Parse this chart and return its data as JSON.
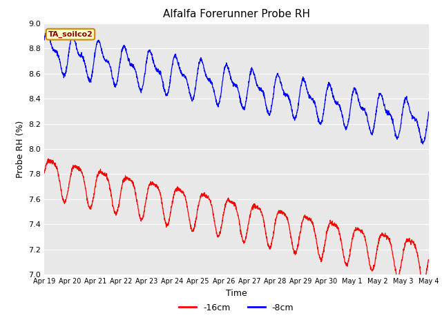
{
  "title": "Alfalfa Forerunner Probe RH",
  "ylabel": "Probe RH (%)",
  "xlabel": "Time",
  "ylim": [
    7.0,
    9.0
  ],
  "yticks": [
    7.0,
    7.2,
    7.4,
    7.6,
    7.8,
    8.0,
    8.2,
    8.4,
    8.6,
    8.8,
    9.0
  ],
  "x_tick_labels": [
    "Apr 19",
    "Apr 20",
    "Apr 21",
    "Apr 22",
    "Apr 23",
    "Apr 24",
    "Apr 25",
    "Apr 26",
    "Apr 27",
    "Apr 28",
    "Apr 29",
    "Apr 30",
    "May 1",
    "May 2",
    "May 3",
    "May 4"
  ],
  "bg_color": "#e8e8e8",
  "legend_box_facecolor": "#ffffcc",
  "legend_box_edgecolor": "#cc8800",
  "legend_text": "TA_soilco2",
  "line_red_label": "-16cm",
  "line_blue_label": "-8cm",
  "line_red_color": "red",
  "line_blue_color": "blue",
  "title_fontsize": 11,
  "axis_label_fontsize": 9,
  "tick_fontsize": 8,
  "legend_fontsize": 9
}
